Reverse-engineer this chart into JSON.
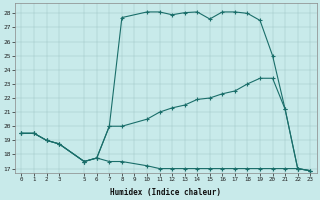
{
  "xlabel": "Humidex (Indice chaleur)",
  "bg_color": "#c8eaea",
  "line_color": "#1a6e6a",
  "xlim": [
    -0.5,
    23.5
  ],
  "ylim": [
    16.7,
    28.7
  ],
  "xticks": [
    0,
    1,
    2,
    3,
    5,
    6,
    7,
    8,
    9,
    10,
    11,
    12,
    13,
    14,
    15,
    16,
    17,
    18,
    19,
    20,
    21,
    22,
    23
  ],
  "yticks": [
    17,
    18,
    19,
    20,
    21,
    22,
    23,
    24,
    25,
    26,
    27,
    28
  ],
  "series": [
    {
      "x": [
        0,
        1,
        2,
        3,
        5,
        6,
        7,
        8,
        10,
        11,
        12,
        13,
        14,
        15,
        16,
        17,
        18,
        19,
        20,
        21,
        22,
        23
      ],
      "y": [
        19.5,
        19.5,
        19.0,
        18.75,
        17.5,
        17.75,
        20.0,
        27.7,
        28.1,
        28.1,
        27.9,
        28.05,
        28.1,
        27.6,
        28.1,
        28.1,
        28.0,
        27.5,
        25.0,
        21.2,
        17.0,
        16.85
      ]
    },
    {
      "x": [
        0,
        1,
        2,
        3,
        5,
        6,
        7,
        8,
        10,
        11,
        12,
        13,
        14,
        15,
        16,
        17,
        18,
        19,
        20,
        21,
        22,
        23
      ],
      "y": [
        19.5,
        19.5,
        19.0,
        18.75,
        17.5,
        17.75,
        20.0,
        20.0,
        20.5,
        21.0,
        21.3,
        21.5,
        21.9,
        22.0,
        22.3,
        22.5,
        23.0,
        23.4,
        23.4,
        21.2,
        17.0,
        16.85
      ]
    },
    {
      "x": [
        0,
        1,
        2,
        3,
        5,
        6,
        7,
        8,
        10,
        11,
        12,
        13,
        14,
        15,
        16,
        17,
        18,
        19,
        20,
        21,
        22,
        23
      ],
      "y": [
        19.5,
        19.5,
        19.0,
        18.75,
        17.5,
        17.75,
        17.5,
        17.5,
        17.2,
        17.0,
        17.0,
        17.0,
        17.0,
        17.0,
        17.0,
        17.0,
        17.0,
        17.0,
        17.0,
        17.0,
        17.0,
        16.85
      ]
    }
  ]
}
